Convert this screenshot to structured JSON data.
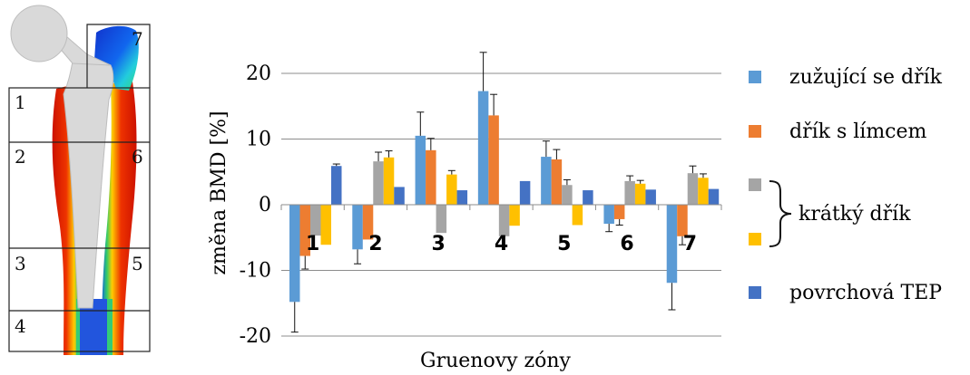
{
  "chart_data": {
    "type": "bar",
    "xlabel": "Gruenovy zóny",
    "ylabel": "změna BMD [%]",
    "ylim": [
      -22,
      25
    ],
    "yticks": [
      -20,
      -10,
      0,
      10,
      20
    ],
    "grid": true,
    "legend_position": "right",
    "categories": [
      "1",
      "2",
      "3",
      "4",
      "5",
      "6",
      "7"
    ],
    "series": [
      {
        "name": "zužující se dřík",
        "color": "#5b9bd5",
        "values": [
          -14.8,
          -6.8,
          10.5,
          17.3,
          7.3,
          -2.9,
          -11.9
        ],
        "errors": [
          4.6,
          2.2,
          3.6,
          5.9,
          2.4,
          1.2,
          4.1
        ]
      },
      {
        "name": "dřík s límcem",
        "color": "#ed7d31",
        "values": [
          -7.8,
          -5.3,
          8.3,
          13.6,
          6.9,
          -2.2,
          -4.8
        ],
        "errors": [
          2.0,
          0,
          1.8,
          3.2,
          1.5,
          0.9,
          1.3
        ]
      },
      {
        "name": "",
        "color": "#a5a5a5",
        "values": [
          -4.7,
          6.6,
          -4.3,
          -4.8,
          3.0,
          3.6,
          4.8
        ],
        "errors": [
          0,
          1.4,
          0,
          0,
          0.8,
          0.8,
          1.1
        ]
      },
      {
        "name": "",
        "color": "#ffc000",
        "values": [
          -6.1,
          7.2,
          4.6,
          -3.2,
          -3.1,
          3.2,
          4.1
        ],
        "errors": [
          0,
          1.0,
          0.6,
          0,
          0,
          0.5,
          0.6
        ]
      },
      {
        "name": "povrchová TEP",
        "color": "#4472c4",
        "values": [
          5.9,
          2.7,
          2.2,
          3.6,
          2.2,
          2.3,
          2.4
        ],
        "errors": [
          0.3,
          0,
          0,
          0,
          0,
          0,
          0
        ]
      }
    ],
    "bracket_label": "krátký dřík"
  },
  "femur_figure": {
    "zone_labels": [
      "1",
      "2",
      "3",
      "4",
      "5",
      "6",
      "7"
    ]
  }
}
